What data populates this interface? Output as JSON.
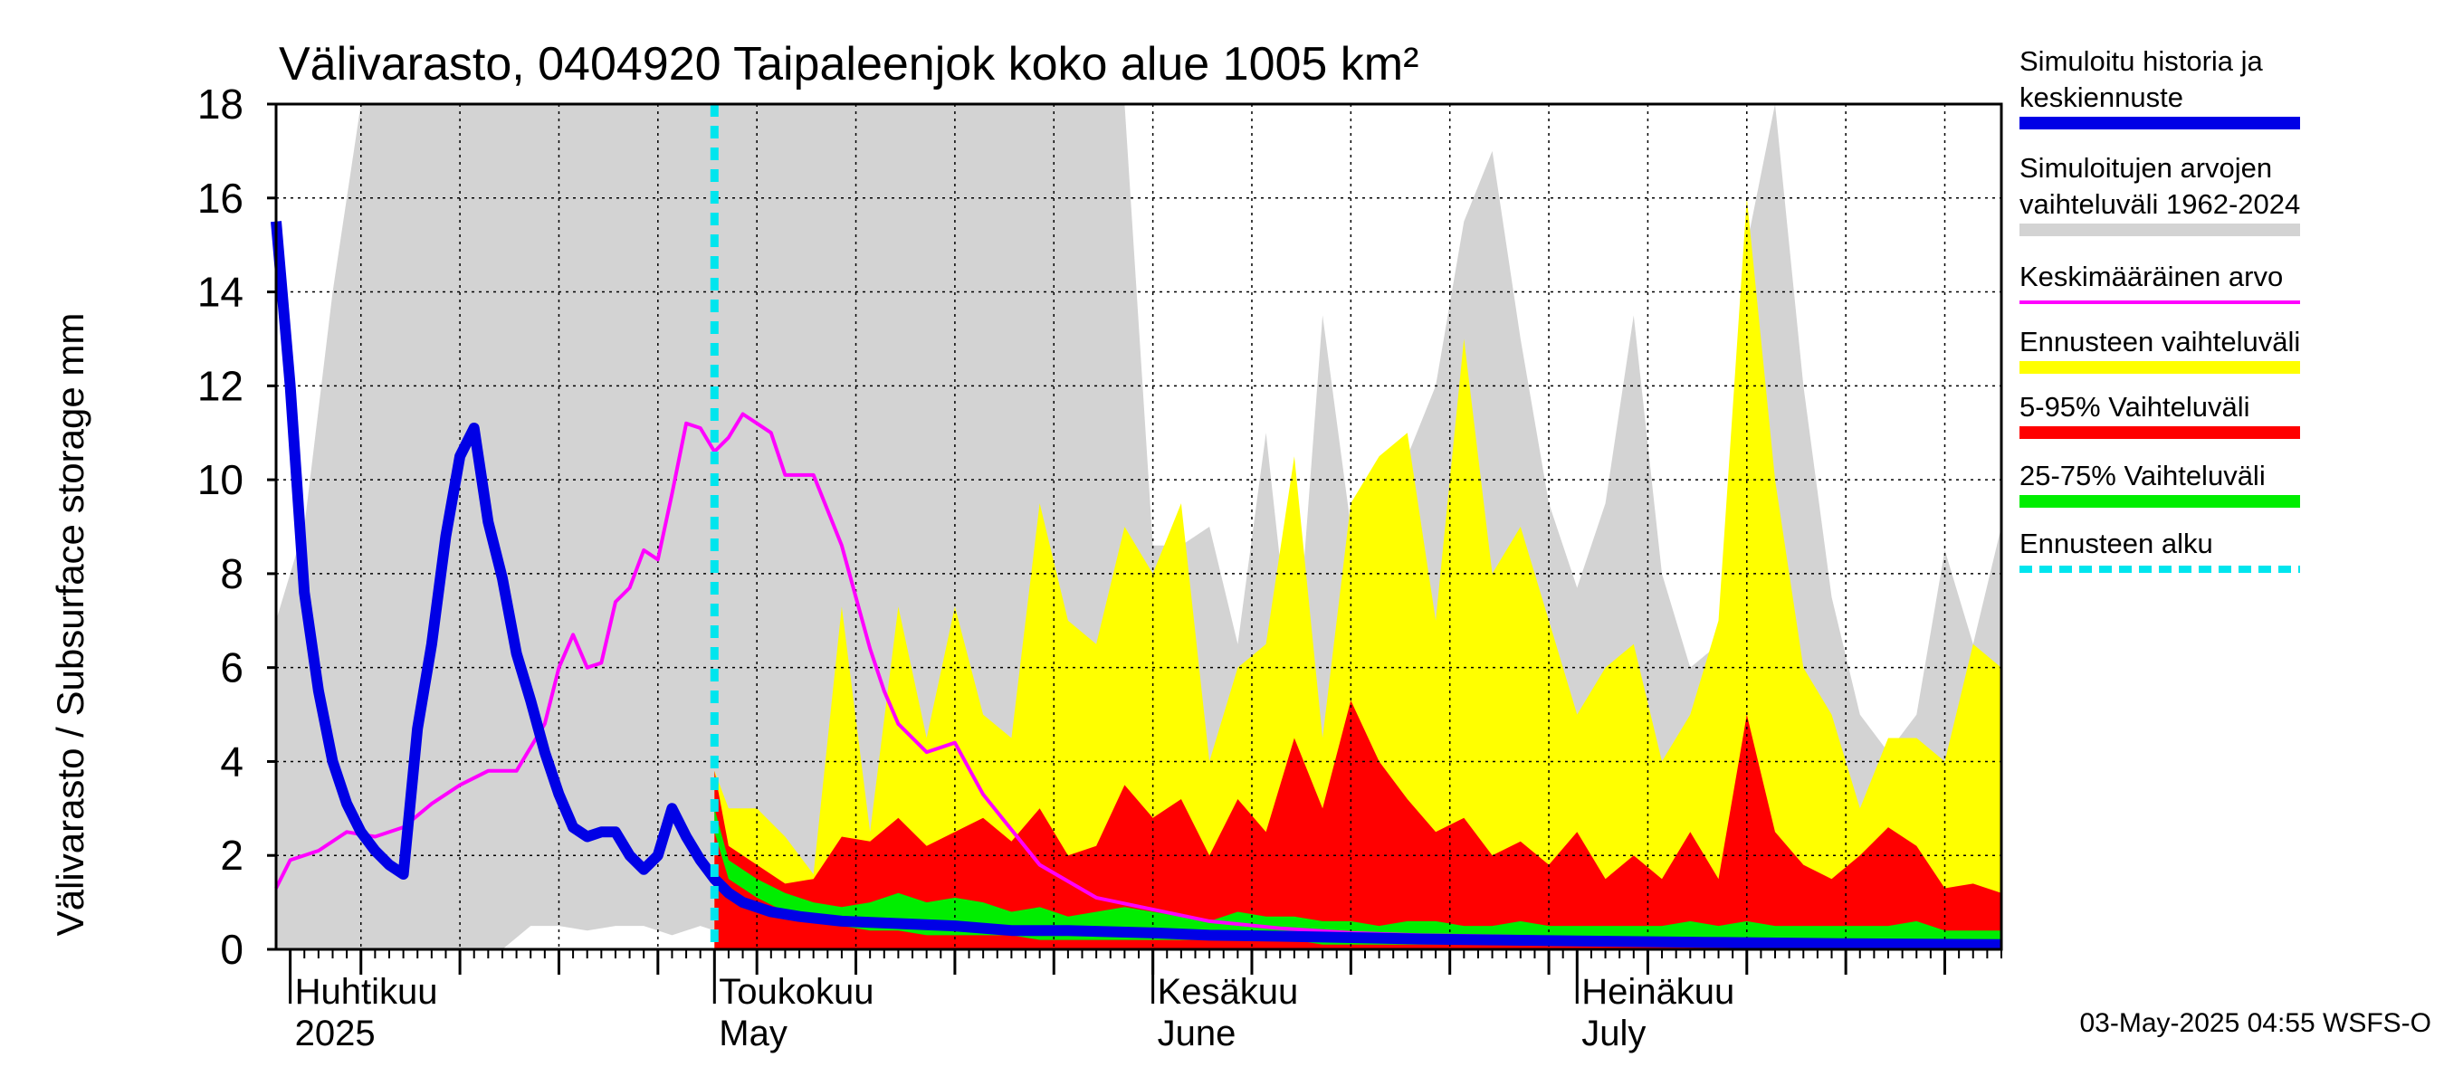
{
  "chart_data": {
    "type": "area",
    "title": "Välivarasto, 0404920 Taipaleenjok koko alue 1005 km²",
    "ylabel": "Välivarasto / Subsurface storage  mm",
    "ylim": [
      0,
      18
    ],
    "yticks": [
      0,
      2,
      4,
      6,
      8,
      10,
      12,
      14,
      16,
      18
    ],
    "x_start": "2025-03-31",
    "x_end": "2025-07-31",
    "forecast_start": "2025-05-01",
    "grid": true,
    "legend_position": "right",
    "month_labels": [
      {
        "date": "2025-04-01",
        "fi": "Huhtikuu",
        "en": "2025"
      },
      {
        "date": "2025-05-01",
        "fi": "Toukokuu",
        "en": "May"
      },
      {
        "date": "2025-06-01",
        "fi": "Kesäkuu",
        "en": "June"
      },
      {
        "date": "2025-07-01",
        "fi": "Heinäkuu",
        "en": "July"
      }
    ],
    "legend": [
      {
        "label": "Simuloitu historia ja keskiennuste",
        "color": "#0000e6",
        "style": "thick"
      },
      {
        "label": "Simuloitujen arvojen vaihteluväli 1962-2024",
        "color": "#d3d3d3",
        "style": "thick"
      },
      {
        "label": "Keskimääräinen arvo",
        "color": "#ff00ff",
        "style": "thin"
      },
      {
        "label": "Ennusteen vaihteluväli",
        "color": "#ffff00",
        "style": "thick"
      },
      {
        "label": "5-95% Vaihteluväli",
        "color": "#ff0000",
        "style": "thick"
      },
      {
        "label": "25-75% Vaihteluväli",
        "color": "#00ee00",
        "style": "thick"
      },
      {
        "label": "Ennusteen alku",
        "color": "#00e5ee",
        "style": "dashed"
      }
    ],
    "series": [
      {
        "name": "Simuloitujen arvojen vaihteluväli 1962-2024",
        "kind": "band",
        "x": [
          "2025-03-31",
          "2025-04-02",
          "2025-04-04",
          "2025-04-06",
          "2025-04-08",
          "2025-04-10",
          "2025-04-12",
          "2025-04-14",
          "2025-04-16",
          "2025-04-18",
          "2025-04-20",
          "2025-04-22",
          "2025-04-24",
          "2025-04-26",
          "2025-04-28",
          "2025-04-30",
          "2025-05-02",
          "2025-05-04",
          "2025-05-06",
          "2025-05-08",
          "2025-05-10",
          "2025-05-12",
          "2025-05-14",
          "2025-05-16",
          "2025-05-18",
          "2025-05-20",
          "2025-05-22",
          "2025-05-24",
          "2025-05-26",
          "2025-05-28",
          "2025-05-30",
          "2025-06-01",
          "2025-06-03",
          "2025-06-05",
          "2025-06-07",
          "2025-06-09",
          "2025-06-11",
          "2025-06-13",
          "2025-06-15",
          "2025-06-17",
          "2025-06-19",
          "2025-06-21",
          "2025-06-23",
          "2025-06-25",
          "2025-06-27",
          "2025-06-29",
          "2025-07-01",
          "2025-07-03",
          "2025-07-05",
          "2025-07-07",
          "2025-07-09",
          "2025-07-11",
          "2025-07-13",
          "2025-07-15",
          "2025-07-17",
          "2025-07-19",
          "2025-07-21",
          "2025-07-23",
          "2025-07-25",
          "2025-07-27",
          "2025-07-29",
          "2025-07-31"
        ],
        "high": [
          7.0,
          9.0,
          14.0,
          18,
          18,
          18,
          18,
          18,
          18,
          18,
          18,
          18,
          18,
          18,
          18,
          18,
          18,
          18,
          18,
          18,
          18,
          18,
          18,
          18,
          18,
          18,
          18,
          18,
          18,
          18,
          18,
          8.6,
          8.6,
          9.0,
          6.5,
          11.0,
          5.5,
          13.5,
          9.0,
          7.0,
          10.5,
          12.0,
          15.5,
          17.0,
          13.0,
          9.5,
          7.7,
          9.5,
          13.5,
          8.0,
          6.0,
          6.5,
          15.0,
          18,
          12.0,
          7.5,
          5.0,
          4.2,
          5.0,
          8.5,
          6.5,
          9.0
        ],
        "low": [
          0,
          0,
          0,
          0,
          0,
          0,
          0,
          0,
          0,
          0.5,
          0.5,
          0.4,
          0.5,
          0.5,
          0.3,
          0.5,
          0.3,
          0,
          0.3,
          0.2,
          0.1,
          0.1,
          0.1,
          0.1,
          0.1,
          0.1,
          0.1,
          0.1,
          0.1,
          0.1,
          0,
          0,
          0,
          0,
          0,
          0,
          0,
          0,
          0,
          0,
          0,
          0,
          0,
          0,
          0,
          0,
          0,
          0,
          0,
          0,
          0,
          0,
          0,
          0,
          0,
          0,
          0,
          0,
          0,
          0,
          0,
          0
        ]
      },
      {
        "name": "Ennusteen vaihteluväli",
        "kind": "band",
        "x": [
          "2025-05-01",
          "2025-05-02",
          "2025-05-04",
          "2025-05-06",
          "2025-05-08",
          "2025-05-10",
          "2025-05-12",
          "2025-05-14",
          "2025-05-16",
          "2025-05-18",
          "2025-05-20",
          "2025-05-22",
          "2025-05-24",
          "2025-05-26",
          "2025-05-28",
          "2025-05-30",
          "2025-06-01",
          "2025-06-03",
          "2025-06-05",
          "2025-06-07",
          "2025-06-09",
          "2025-06-11",
          "2025-06-13",
          "2025-06-15",
          "2025-06-17",
          "2025-06-19",
          "2025-06-21",
          "2025-06-23",
          "2025-06-25",
          "2025-06-27",
          "2025-06-29",
          "2025-07-01",
          "2025-07-03",
          "2025-07-05",
          "2025-07-07",
          "2025-07-09",
          "2025-07-11",
          "2025-07-13",
          "2025-07-15",
          "2025-07-17",
          "2025-07-19",
          "2025-07-21",
          "2025-07-23",
          "2025-07-25",
          "2025-07-27",
          "2025-07-29",
          "2025-07-31"
        ],
        "high": [
          3.8,
          3.0,
          3.0,
          2.4,
          1.6,
          7.3,
          2.5,
          7.3,
          4.5,
          7.3,
          5.0,
          4.5,
          9.5,
          7.0,
          6.5,
          9.0,
          8.0,
          9.5,
          4.0,
          6.0,
          6.5,
          10.5,
          4.5,
          9.5,
          10.5,
          11.0,
          7.0,
          13.0,
          8.0,
          9.0,
          7.0,
          5.0,
          6.0,
          6.5,
          4.0,
          5.0,
          7.0,
          16.0,
          10.0,
          6.0,
          5.0,
          3.0,
          4.5,
          4.5,
          4.0,
          6.5,
          6.0
        ],
        "low": [
          0,
          0,
          0,
          0,
          0,
          0,
          0,
          0,
          0,
          0,
          0,
          0,
          0,
          0,
          0,
          0,
          0,
          0,
          0,
          0,
          0,
          0,
          0,
          0,
          0,
          0,
          0,
          0,
          0,
          0,
          0,
          0,
          0,
          0,
          0,
          0,
          0,
          0,
          0,
          0,
          0,
          0,
          0,
          0,
          0,
          0,
          0
        ]
      },
      {
        "name": "5-95% Vaihteluväli",
        "kind": "band",
        "x": [
          "2025-05-01",
          "2025-05-02",
          "2025-05-04",
          "2025-05-06",
          "2025-05-08",
          "2025-05-10",
          "2025-05-12",
          "2025-05-14",
          "2025-05-16",
          "2025-05-18",
          "2025-05-20",
          "2025-05-22",
          "2025-05-24",
          "2025-05-26",
          "2025-05-28",
          "2025-05-30",
          "2025-06-01",
          "2025-06-03",
          "2025-06-05",
          "2025-06-07",
          "2025-06-09",
          "2025-06-11",
          "2025-06-13",
          "2025-06-15",
          "2025-06-17",
          "2025-06-19",
          "2025-06-21",
          "2025-06-23",
          "2025-06-25",
          "2025-06-27",
          "2025-06-29",
          "2025-07-01",
          "2025-07-03",
          "2025-07-05",
          "2025-07-07",
          "2025-07-09",
          "2025-07-11",
          "2025-07-13",
          "2025-07-15",
          "2025-07-17",
          "2025-07-19",
          "2025-07-21",
          "2025-07-23",
          "2025-07-25",
          "2025-07-27",
          "2025-07-29",
          "2025-07-31"
        ],
        "high": [
          3.8,
          2.2,
          1.8,
          1.4,
          1.5,
          2.4,
          2.3,
          2.8,
          2.2,
          2.5,
          2.8,
          2.3,
          3.0,
          2.0,
          2.2,
          3.5,
          2.8,
          3.2,
          2.0,
          3.2,
          2.5,
          4.5,
          3.0,
          5.3,
          4.0,
          3.2,
          2.5,
          2.8,
          2.0,
          2.3,
          1.8,
          2.5,
          1.5,
          2.0,
          1.5,
          2.5,
          1.5,
          5.0,
          2.5,
          1.8,
          1.5,
          2.0,
          2.6,
          2.2,
          1.3,
          1.4,
          1.2
        ],
        "low": [
          0,
          0,
          0,
          0,
          0,
          0,
          0,
          0,
          0,
          0,
          0,
          0,
          0,
          0,
          0,
          0,
          0,
          0,
          0,
          0,
          0,
          0,
          0,
          0,
          0,
          0,
          0,
          0,
          0,
          0,
          0,
          0,
          0,
          0,
          0,
          0,
          0,
          0,
          0,
          0,
          0,
          0,
          0,
          0,
          0,
          0,
          0
        ]
      },
      {
        "name": "25-75% Vaihteluväli",
        "kind": "band",
        "x": [
          "2025-05-01",
          "2025-05-02",
          "2025-05-04",
          "2025-05-06",
          "2025-05-08",
          "2025-05-10",
          "2025-05-12",
          "2025-05-14",
          "2025-05-16",
          "2025-05-18",
          "2025-05-20",
          "2025-05-22",
          "2025-05-24",
          "2025-05-26",
          "2025-05-28",
          "2025-05-30",
          "2025-06-01",
          "2025-06-03",
          "2025-06-05",
          "2025-06-07",
          "2025-06-09",
          "2025-06-11",
          "2025-06-13",
          "2025-06-15",
          "2025-06-17",
          "2025-06-19",
          "2025-06-21",
          "2025-06-23",
          "2025-06-25",
          "2025-06-27",
          "2025-06-29",
          "2025-07-01",
          "2025-07-03",
          "2025-07-05",
          "2025-07-07",
          "2025-07-09",
          "2025-07-11",
          "2025-07-13",
          "2025-07-15",
          "2025-07-17",
          "2025-07-19",
          "2025-07-21",
          "2025-07-23",
          "2025-07-25",
          "2025-07-27",
          "2025-07-29",
          "2025-07-31"
        ],
        "high": [
          3.0,
          1.9,
          1.5,
          1.2,
          1.0,
          0.9,
          1.0,
          1.2,
          1.0,
          1.1,
          1.0,
          0.8,
          0.9,
          0.7,
          0.8,
          0.9,
          0.8,
          0.7,
          0.6,
          0.8,
          0.7,
          0.7,
          0.6,
          0.6,
          0.5,
          0.6,
          0.6,
          0.5,
          0.5,
          0.6,
          0.5,
          0.5,
          0.5,
          0.5,
          0.5,
          0.6,
          0.5,
          0.6,
          0.5,
          0.5,
          0.5,
          0.5,
          0.5,
          0.6,
          0.4,
          0.4,
          0.4
        ],
        "low": [
          2.5,
          1.5,
          1.1,
          0.8,
          0.6,
          0.5,
          0.4,
          0.4,
          0.3,
          0.3,
          0.3,
          0.3,
          0.2,
          0.2,
          0.2,
          0.2,
          0.2,
          0.2,
          0.2,
          0.2,
          0.2,
          0.2,
          0.1,
          0.1,
          0.1,
          0.1,
          0.1,
          0.1,
          0.1,
          0.1,
          0.1,
          0.1,
          0.1,
          0.1,
          0.1,
          0.1,
          0.1,
          0.1,
          0.1,
          0.1,
          0.1,
          0.1,
          0.1,
          0.1,
          0.1,
          0.1,
          0.1
        ]
      },
      {
        "name": "Keskimääräinen arvo",
        "kind": "line",
        "x": [
          "2025-03-31",
          "2025-04-01",
          "2025-04-03",
          "2025-04-05",
          "2025-04-07",
          "2025-04-09",
          "2025-04-11",
          "2025-04-13",
          "2025-04-15",
          "2025-04-17",
          "2025-04-19",
          "2025-04-20",
          "2025-04-21",
          "2025-04-22",
          "2025-04-23",
          "2025-04-24",
          "2025-04-25",
          "2025-04-26",
          "2025-04-27",
          "2025-04-28",
          "2025-04-29",
          "2025-04-30",
          "2025-05-01",
          "2025-05-02",
          "2025-05-03",
          "2025-05-04",
          "2025-05-05",
          "2025-05-06",
          "2025-05-08",
          "2025-05-10",
          "2025-05-11",
          "2025-05-12",
          "2025-05-13",
          "2025-05-14",
          "2025-05-16",
          "2025-05-18",
          "2025-05-20",
          "2025-05-24",
          "2025-05-28",
          "2025-06-01",
          "2025-06-05",
          "2025-06-10",
          "2025-06-15",
          "2025-06-20",
          "2025-06-25",
          "2025-07-01",
          "2025-07-10",
          "2025-07-20",
          "2025-07-31"
        ],
        "y": [
          1.3,
          1.9,
          2.1,
          2.5,
          2.4,
          2.6,
          3.1,
          3.5,
          3.8,
          3.8,
          4.8,
          6.0,
          6.7,
          6.0,
          6.1,
          7.4,
          7.7,
          8.5,
          8.3,
          9.7,
          11.2,
          11.1,
          10.6,
          10.9,
          11.4,
          11.2,
          11.0,
          10.1,
          10.1,
          8.6,
          7.5,
          6.4,
          5.5,
          4.8,
          4.2,
          4.4,
          3.3,
          1.8,
          1.1,
          0.85,
          0.6,
          0.45,
          0.35,
          0.3,
          0.28,
          0.24,
          0.2,
          0.16,
          0.12
        ]
      },
      {
        "name": "Simuloitu historia ja keskiennuste",
        "kind": "line",
        "x": [
          "2025-03-31",
          "2025-04-01",
          "2025-04-02",
          "2025-04-03",
          "2025-04-04",
          "2025-04-05",
          "2025-04-06",
          "2025-04-07",
          "2025-04-08",
          "2025-04-09",
          "2025-04-10",
          "2025-04-11",
          "2025-04-12",
          "2025-04-13",
          "2025-04-14",
          "2025-04-15",
          "2025-04-16",
          "2025-04-17",
          "2025-04-18",
          "2025-04-19",
          "2025-04-20",
          "2025-04-21",
          "2025-04-22",
          "2025-04-23",
          "2025-04-24",
          "2025-04-25",
          "2025-04-26",
          "2025-04-27",
          "2025-04-28",
          "2025-04-29",
          "2025-04-30",
          "2025-05-01",
          "2025-05-02",
          "2025-05-03",
          "2025-05-05",
          "2025-05-07",
          "2025-05-10",
          "2025-05-14",
          "2025-05-18",
          "2025-05-22",
          "2025-05-26",
          "2025-06-01",
          "2025-06-05",
          "2025-06-10",
          "2025-06-15",
          "2025-06-20",
          "2025-06-25",
          "2025-07-01",
          "2025-07-10",
          "2025-07-20",
          "2025-07-31"
        ],
        "y": [
          15.5,
          12.0,
          7.6,
          5.5,
          4.0,
          3.1,
          2.5,
          2.1,
          1.8,
          1.6,
          4.7,
          6.5,
          8.8,
          10.5,
          11.1,
          9.1,
          7.9,
          6.3,
          5.3,
          4.2,
          3.3,
          2.6,
          2.4,
          2.5,
          2.5,
          2.0,
          1.7,
          2.0,
          3.0,
          2.4,
          1.9,
          1.5,
          1.2,
          1.0,
          0.8,
          0.7,
          0.6,
          0.55,
          0.5,
          0.4,
          0.4,
          0.35,
          0.3,
          0.28,
          0.25,
          0.22,
          0.2,
          0.18,
          0.15,
          0.12,
          0.1
        ]
      }
    ]
  },
  "footer": {
    "timestamp": "03-May-2025 04:55 WSFS-O"
  }
}
